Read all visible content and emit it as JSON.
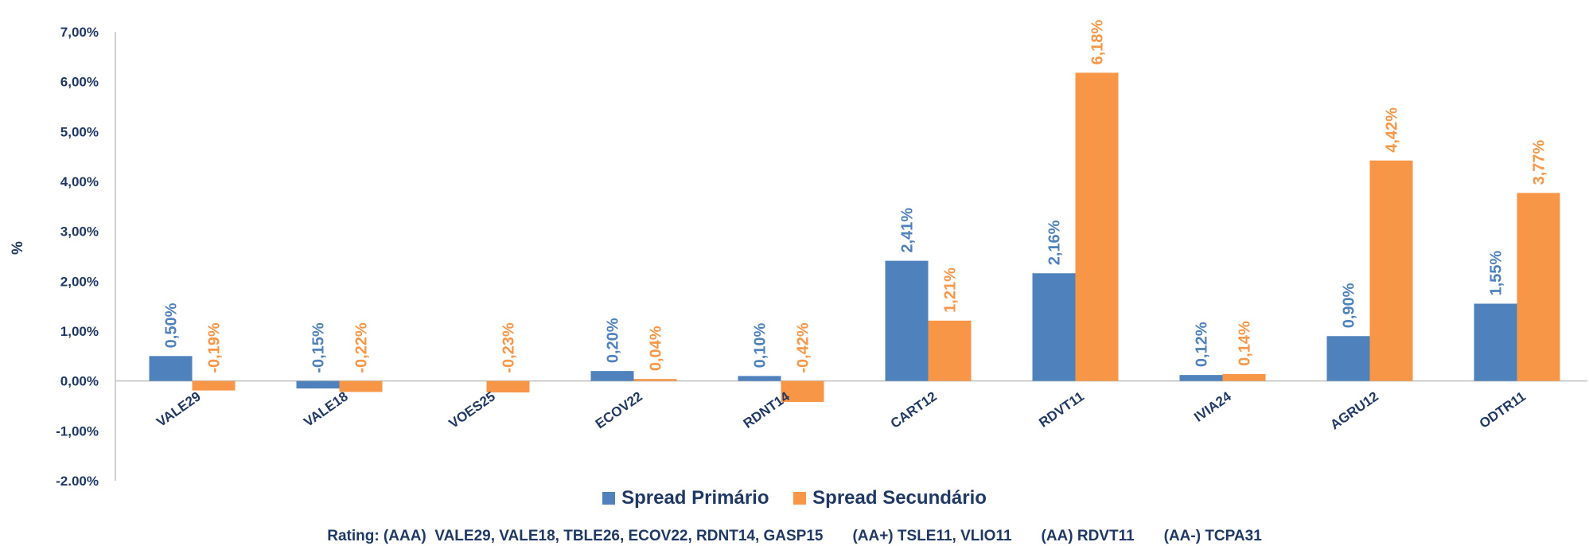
{
  "chart_data": {
    "type": "bar",
    "ylabel": "%",
    "ylim": [
      -2,
      7
    ],
    "y_ticks": [
      "7,00%",
      "6,00%",
      "5,00%",
      "4,00%",
      "3,00%",
      "2,00%",
      "1,00%",
      "0,00%",
      "-1,00%",
      "-2,00%"
    ],
    "y_tick_values": [
      7,
      6,
      5,
      4,
      3,
      2,
      1,
      0,
      -1,
      -2
    ],
    "categories": [
      "VALE29",
      "VALE18",
      "VOES25",
      "ECOV22",
      "RDNT14",
      "CART12",
      "RDVT11",
      "IVIA24",
      "AGRU12",
      "ODTR11"
    ],
    "series": [
      {
        "name": "Spread Primário",
        "color": "#4F81BD",
        "values": [
          0.5,
          -0.15,
          null,
          0.2,
          0.1,
          2.41,
          2.16,
          0.12,
          0.9,
          1.55
        ],
        "labels": [
          "0,50%",
          "-0,15%",
          "",
          "0,20%",
          "0,10%",
          "2,41%",
          "2,16%",
          "0,12%",
          "0,90%",
          "1,55%"
        ]
      },
      {
        "name": "Spread Secundário",
        "color": "#F79646",
        "values": [
          -0.19,
          -0.22,
          -0.23,
          0.04,
          -0.42,
          1.21,
          6.18,
          0.14,
          4.42,
          3.77
        ],
        "labels": [
          "-0,19%",
          "-0,22%",
          "-0,23%",
          "0,04%",
          "-0,42%",
          "1,21%",
          "6,18%",
          "0,14%",
          "4,42%",
          "3,77%"
        ]
      }
    ],
    "grid": false,
    "legend_position": "bottom"
  },
  "footnote": "Rating: (AAA)  VALE29, VALE18, TBLE26, ECOV22, RDNT14, GASP15       (AA+) TSLE11, VLIO11       (AA) RDVT11       (AA-) TCPA31",
  "colors": {
    "text_dark": "#1F3864",
    "series1": "#4F81BD",
    "series2": "#F79646",
    "axis": "#BFBFBF"
  }
}
